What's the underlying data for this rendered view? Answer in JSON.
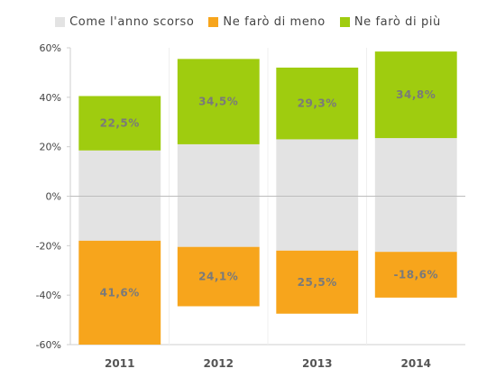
{
  "chart_data": {
    "type": "bar",
    "stacked": true,
    "categories": [
      "2011",
      "2012",
      "2013",
      "2014"
    ],
    "series": [
      {
        "name": "Come l'anno scorso",
        "color": "#e3e3e3",
        "ranges": [
          [
            -18,
            18.5
          ],
          [
            -20.5,
            21
          ],
          [
            -22,
            23
          ],
          [
            -22.5,
            23.5
          ]
        ]
      },
      {
        "name": "Ne farò di meno",
        "color": "#f7a51c",
        "ranges": [
          [
            -60,
            -18
          ],
          [
            -44.5,
            -20.5
          ],
          [
            -47.5,
            -22
          ],
          [
            -41,
            -22.5
          ]
        ],
        "labels": [
          "41,6%",
          "24,1%",
          "25,5%",
          "-18,6%"
        ]
      },
      {
        "name": "Ne farò di più",
        "color": "#9fcc0f",
        "ranges": [
          [
            18.5,
            40.5
          ],
          [
            21,
            55.5
          ],
          [
            23,
            52
          ],
          [
            23.5,
            58.5
          ]
        ],
        "labels": [
          "22,5%",
          "34,5%",
          "29,3%",
          "34,8%"
        ]
      }
    ],
    "ylim": [
      -60,
      60
    ],
    "yticks": [
      {
        "value": 60,
        "label": "60%"
      },
      {
        "value": 40,
        "label": "40%"
      },
      {
        "value": 20,
        "label": "20%"
      },
      {
        "value": 0,
        "label": "0%"
      },
      {
        "value": -20,
        "label": "-20%"
      },
      {
        "value": -40,
        "label": "-40%"
      },
      {
        "value": -60,
        "label": "-60%"
      }
    ],
    "legend_position": "top",
    "grid": false
  }
}
